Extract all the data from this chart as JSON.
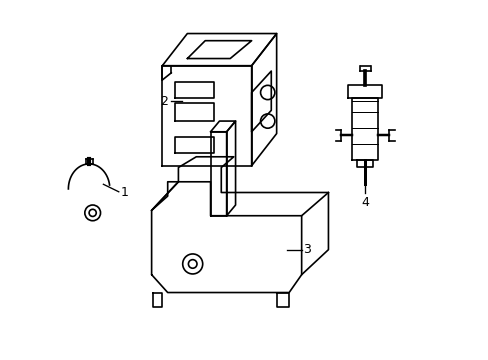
{
  "background_color": "#ffffff",
  "line_color": "#000000",
  "line_width": 1.2,
  "fig_width": 4.89,
  "fig_height": 3.6,
  "dpi": 100
}
